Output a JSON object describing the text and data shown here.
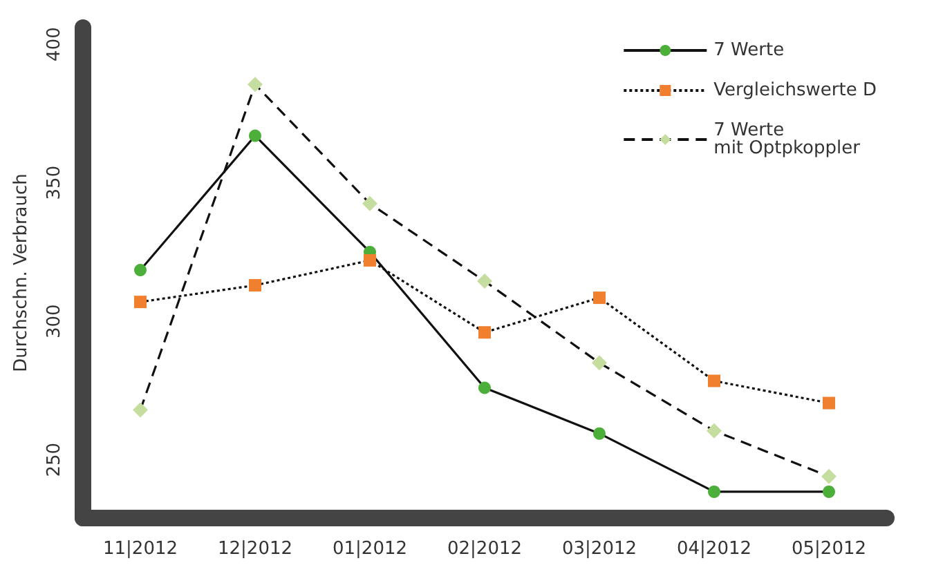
{
  "chart_data": {
    "type": "line",
    "ylabel": "Durchschn. Verbrauch",
    "categories": [
      "11|2012",
      "12|2012",
      "01|2012",
      "02|2012",
      "03|2012",
      "04|2012",
      "05|2012"
    ],
    "ylim": [
      229,
      406
    ],
    "yticks": [
      250,
      300,
      350,
      400
    ],
    "grid": false,
    "legend": "top right",
    "series": [
      {
        "name": "7 Werte",
        "color": "#4caf3a",
        "marker": "circle",
        "line_style": "solid",
        "values": [
          318.5,
          367,
          325,
          276,
          259.5,
          238.5,
          238.5
        ]
      },
      {
        "name": "Vergleichswerte D",
        "color": "#f07f2e",
        "marker": "square",
        "line_style": "dotted",
        "values": [
          307,
          313,
          322,
          296,
          308.5,
          278.5,
          270.5
        ]
      },
      {
        "name": "7 Werte\nmit Optpkoppler",
        "color": "#c5dea0",
        "marker": "diamond",
        "line_style": "dashed",
        "values": [
          268,
          385.5,
          342.5,
          314.5,
          285,
          260.5,
          244
        ]
      }
    ]
  }
}
